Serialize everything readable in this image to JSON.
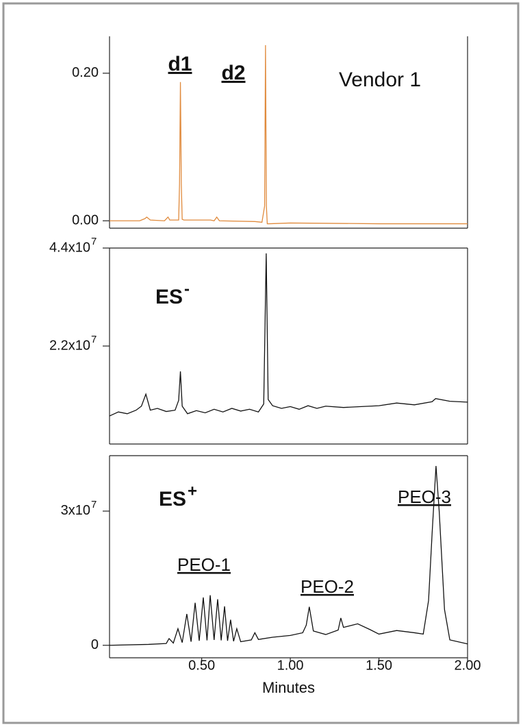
{
  "chart_data": [
    {
      "type": "line",
      "xlim": [
        -0.02,
        2.0
      ],
      "ylim": [
        -0.01,
        0.25
      ],
      "yticks": [
        {
          "value": 0,
          "label": "0.00"
        },
        {
          "value": 0.2,
          "label": "0.20"
        }
      ],
      "annotations": [
        {
          "text": "d1",
          "bold": true,
          "underline": true
        },
        {
          "text": "d2",
          "bold": true,
          "underline": true
        },
        {
          "text": "Vendor 1"
        }
      ],
      "series": [
        {
          "color": "#e08a3c",
          "x": [
            -0.02,
            0.15,
            0.18,
            0.19,
            0.21,
            0.29,
            0.31,
            0.32,
            0.37,
            0.375,
            0.38,
            0.385,
            0.39,
            0.4,
            0.55,
            0.57,
            0.585,
            0.6,
            0.8,
            0.84,
            0.855,
            0.86,
            0.865,
            0.87,
            0.88,
            1.0,
            1.5,
            2.0
          ],
          "values": [
            0,
            0,
            0.003,
            0.005,
            0.001,
            0,
            0.005,
            0.001,
            0.001,
            0.05,
            0.188,
            0.05,
            0.002,
            0.001,
            0.001,
            0,
            0.005,
            0,
            -0.001,
            -0.002,
            0.02,
            0.238,
            0.02,
            -0.004,
            -0.004,
            -0.003,
            -0.004,
            -0.004
          ]
        }
      ]
    },
    {
      "type": "line",
      "xlim": [
        -0.02,
        2.0
      ],
      "ylim": [
        0,
        44000000
      ],
      "yticks": [
        {
          "value": 44000000,
          "label": "4.4x10",
          "exponent": "7"
        },
        {
          "value": 22000000,
          "label": "2.2x10",
          "exponent": "7"
        }
      ],
      "annotations": [
        {
          "text": "ES",
          "bold": true,
          "superscript": "-"
        }
      ],
      "series": [
        {
          "color": "#111111",
          "x": [
            -0.02,
            0.03,
            0.08,
            0.13,
            0.16,
            0.185,
            0.21,
            0.25,
            0.3,
            0.35,
            0.37,
            0.38,
            0.39,
            0.42,
            0.47,
            0.52,
            0.57,
            0.62,
            0.67,
            0.72,
            0.77,
            0.82,
            0.85,
            0.864,
            0.875,
            0.9,
            0.95,
            1.0,
            1.05,
            1.1,
            1.15,
            1.2,
            1.3,
            1.4,
            1.5,
            1.6,
            1.7,
            1.8,
            1.82,
            1.9,
            2.0
          ],
          "values": [
            6300000,
            7200000,
            6800000,
            7600000,
            8500000,
            11200000,
            7600000,
            8000000,
            7300000,
            7600000,
            9800000,
            16300000,
            8500000,
            6800000,
            7500000,
            7000000,
            7800000,
            7200000,
            8000000,
            7400000,
            7800000,
            7200000,
            9000000,
            42800000,
            10000000,
            8600000,
            8000000,
            8400000,
            7800000,
            8600000,
            8000000,
            8500000,
            8200000,
            8400000,
            8600000,
            9200000,
            8800000,
            9500000,
            10200000,
            9600000,
            9400000
          ]
        }
      ]
    },
    {
      "type": "line",
      "xlim": [
        -0.02,
        2.0
      ],
      "ylim": [
        -2800000,
        42400000
      ],
      "yticks": [
        {
          "value": 30000000,
          "label": "3x10",
          "exponent": "7"
        },
        0
      ],
      "xticks": [
        {
          "value": 0.5,
          "label": "0.50"
        },
        {
          "value": 1,
          "label": "1.00"
        },
        {
          "value": 1.5,
          "label": "1.50"
        },
        {
          "value": 2,
          "label": "2.00"
        }
      ],
      "x_label": "Minutes",
      "annotations": [
        {
          "text": "ES",
          "bold": true,
          "superscript": "+"
        },
        {
          "text": "PEO-1",
          "underline": true,
          "color": "#d0202a"
        },
        {
          "text": "PEO-2",
          "underline": true,
          "color": "#d0202a"
        },
        {
          "text": "PEO-3",
          "underline": true,
          "color": "#d0202a"
        }
      ],
      "series": [
        {
          "color": "#111111",
          "x": [
            -0.02,
            0.2,
            0.3,
            0.316,
            0.34,
            0.366,
            0.39,
            0.416,
            0.44,
            0.463,
            0.486,
            0.509,
            0.53,
            0.548,
            0.57,
            0.59,
            0.61,
            0.629,
            0.646,
            0.663,
            0.68,
            0.698,
            0.72,
            0.78,
            0.8,
            0.82,
            0.9,
            1.0,
            1.07,
            1.09,
            1.107,
            1.13,
            1.2,
            1.27,
            1.285,
            1.3,
            1.38,
            1.45,
            1.5,
            1.6,
            1.7,
            1.75,
            1.78,
            1.8,
            1.822,
            1.84,
            1.87,
            1.9,
            2.0
          ],
          "values": [
            0,
            200000,
            400000,
            1500000,
            500000,
            3700000,
            600000,
            7000000,
            800000,
            9500000,
            1000000,
            10700000,
            1100000,
            11200000,
            1200000,
            10300000,
            1100000,
            8700000,
            1000000,
            5700000,
            900000,
            3700000,
            800000,
            1200000,
            2800000,
            1300000,
            1800000,
            2200000,
            2800000,
            4500000,
            8600000,
            3200000,
            2400000,
            3400000,
            6100000,
            4000000,
            4800000,
            3500000,
            2500000,
            3300000,
            2800000,
            2500000,
            10000000,
            25000000,
            40100000,
            30000000,
            8000000,
            1200000,
            300000
          ]
        }
      ]
    }
  ]
}
